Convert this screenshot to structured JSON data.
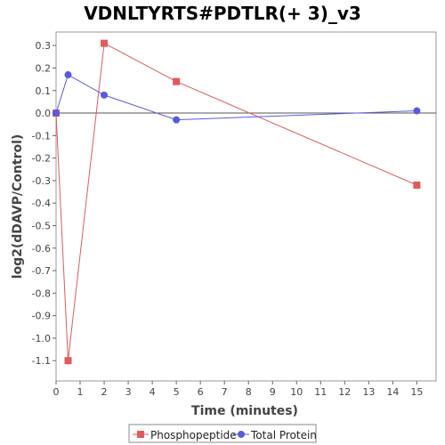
{
  "chart_data": {
    "type": "line",
    "title": "VDNLTYRTS#PDTLR(+ 3)_v3",
    "xlabel": "Time (minutes)",
    "ylabel": "log2(dDAVP/Control)",
    "xlim": [
      0,
      15.8
    ],
    "ylim": [
      -1.19,
      0.36
    ],
    "xticks": [
      0,
      1,
      2,
      3,
      4,
      5,
      6,
      7,
      8,
      9,
      10,
      11,
      12,
      13,
      14,
      15
    ],
    "yticks": [
      0.3,
      0.2,
      0.1,
      0.0,
      -0.1,
      -0.2,
      -0.3,
      -0.4,
      -0.5,
      -0.6,
      -0.7,
      -0.8,
      -0.9,
      -1.0,
      -1.1
    ],
    "ytick_labels": [
      "0.3",
      "0.2",
      "0.1",
      "0.0",
      "-0.1",
      "-0.2",
      "-0.3",
      "-0.4",
      "-0.5",
      "-0.6",
      "-0.7",
      "-0.8",
      "-0.9",
      "-1.0",
      "-1.1"
    ],
    "zero_line": true,
    "grid": false,
    "legend_position": "bottom",
    "series": [
      {
        "name": "Phosphopeptide",
        "marker": "square",
        "color": "#e05a5a",
        "x": [
          0,
          0.5,
          2,
          5,
          15
        ],
        "y": [
          0.0,
          -1.1,
          0.31,
          0.14,
          -0.32
        ]
      },
      {
        "name": "Total Protein",
        "marker": "circle",
        "color": "#5a5ae0",
        "x": [
          0,
          0.5,
          2,
          5,
          15
        ],
        "y": [
          0.0,
          0.17,
          0.08,
          -0.03,
          0.01
        ]
      }
    ]
  }
}
